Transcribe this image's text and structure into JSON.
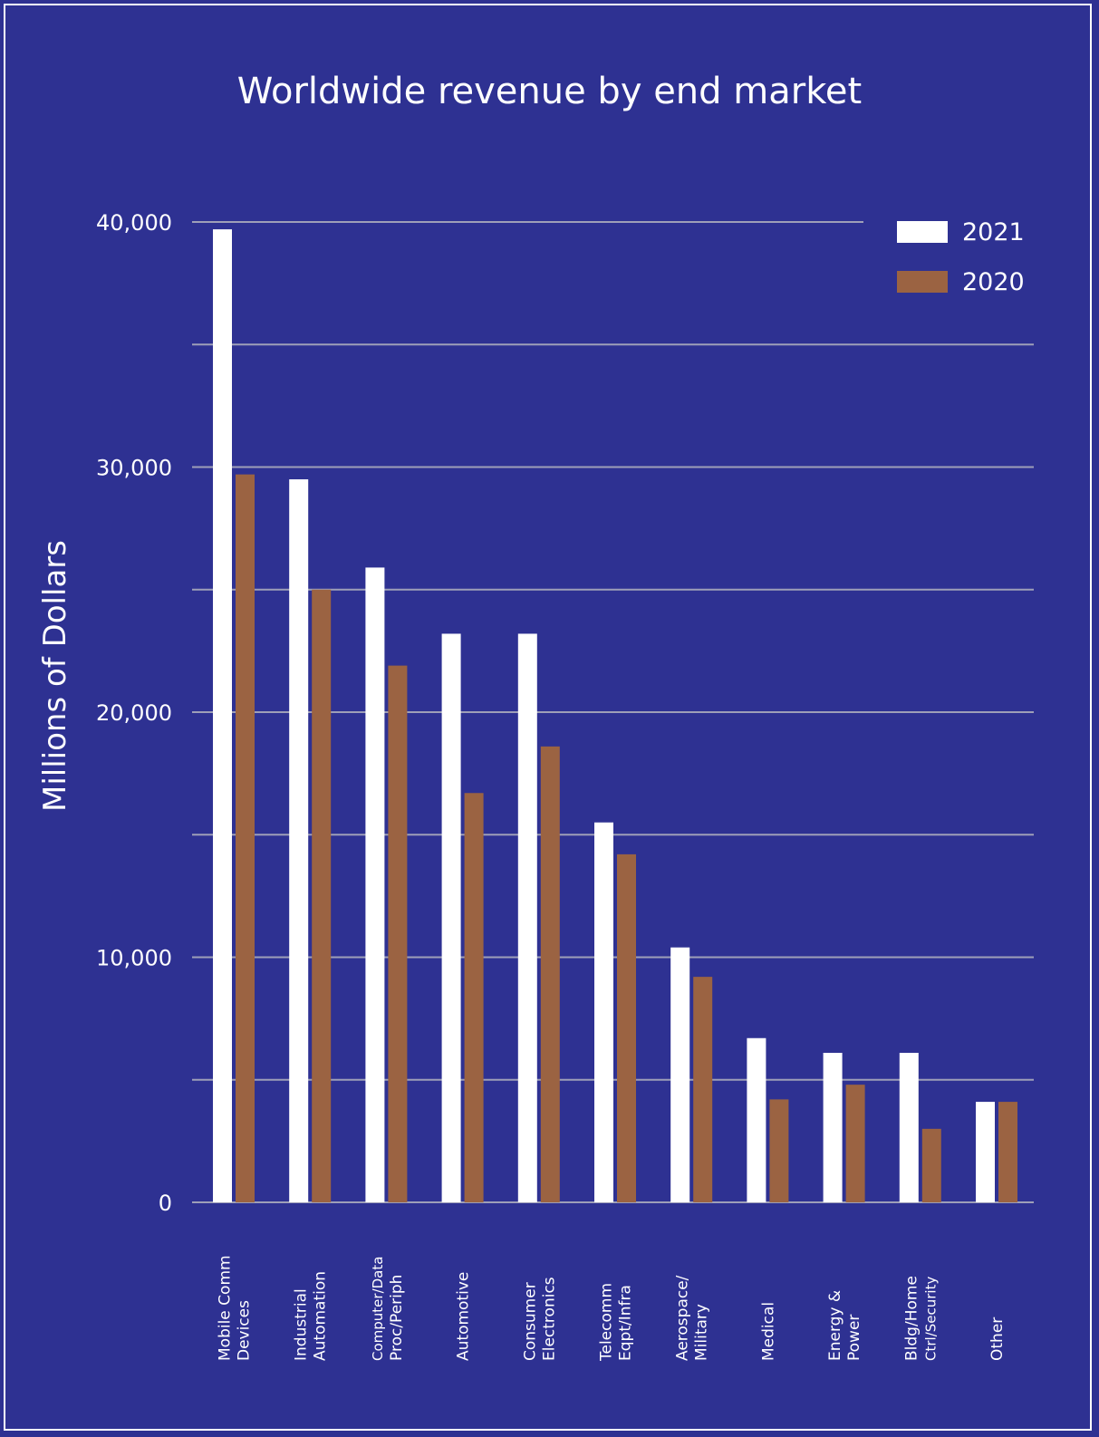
{
  "chart_data": {
    "type": "bar",
    "title": "Worldwide revenue by end market",
    "xlabel": "",
    "ylabel": "Millions of Dollars",
    "ylim": [
      0,
      40000
    ],
    "y_tick_labels": [
      {
        "value": 0,
        "label": "0"
      },
      {
        "value": 10000,
        "label": "10,000"
      },
      {
        "value": 20000,
        "label": "20,000"
      },
      {
        "value": 30000,
        "label": "30,000"
      },
      {
        "value": 40000,
        "label": "40,000"
      }
    ],
    "gridlines": [
      0,
      5000,
      10000,
      15000,
      20000,
      25000,
      30000,
      35000,
      40000
    ],
    "grid": true,
    "legend_position": "top-right",
    "categories": [
      [
        "Mobile Comm",
        "Devices"
      ],
      [
        "Industrial",
        "Automation"
      ],
      [
        "Computer/Data",
        "Proc/Periph"
      ],
      [
        "Automotive"
      ],
      [
        "Consumer",
        "Electronics"
      ],
      [
        "Telecomm",
        "Eqpt/Infra"
      ],
      [
        "Aerospace/",
        "Military"
      ],
      [
        "Medical"
      ],
      [
        "Energy &",
        "Power"
      ],
      [
        "Bldg/Home",
        "Ctrl/Security"
      ],
      [
        "Other"
      ]
    ],
    "series": [
      {
        "name": "2021",
        "color": "#ffffff",
        "values": [
          39700,
          29500,
          25900,
          23200,
          23200,
          15500,
          10400,
          6700,
          6100,
          6100,
          4100
        ]
      },
      {
        "name": "2020",
        "color": "#9b6342",
        "values": [
          29700,
          25000,
          21900,
          16700,
          18600,
          14200,
          9200,
          4200,
          4800,
          3000,
          4100
        ]
      }
    ]
  }
}
